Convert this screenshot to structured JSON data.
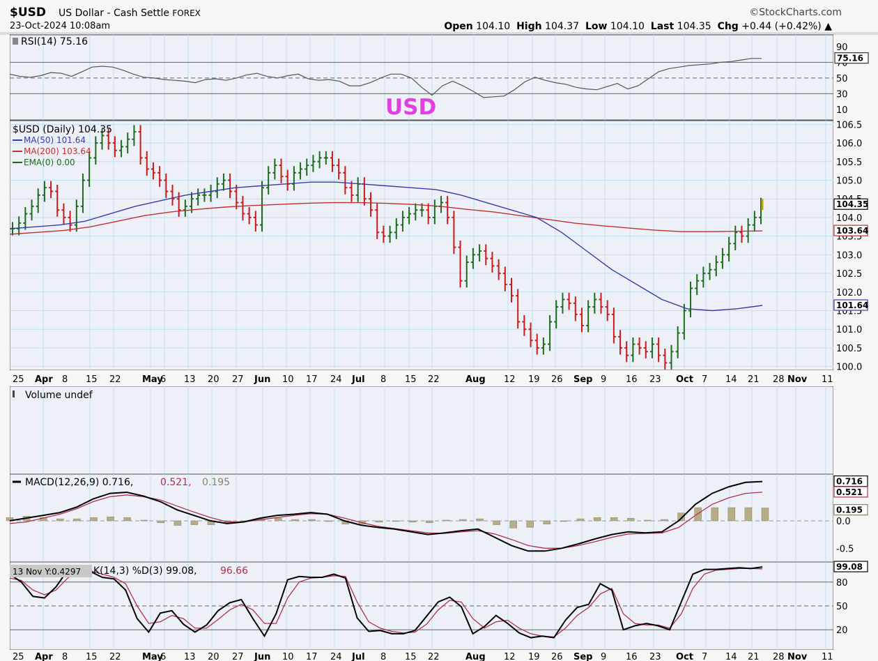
{
  "header": {
    "symbol": "$USD",
    "description": "US Dollar - Cash Settle",
    "market": "FOREX",
    "datetime": "23-Oct-2024 10:08am",
    "brand": "©StockCharts.com",
    "open_label": "Open",
    "open": "104.10",
    "high_label": "High",
    "high": "104.37",
    "low_label": "Low",
    "low": "104.10",
    "last_label": "Last",
    "last": "104.35",
    "chg_label": "Chg",
    "chg": "+0.44 (+0.42%)",
    "chg_arrow": "▲"
  },
  "annotation": "USD",
  "colors": {
    "up": "#1e6b1e",
    "down": "#cc1a1a",
    "ma50": "#3a3aa8",
    "ma200": "#c03030",
    "macd_hist": "#b5ad88",
    "bg": "#eef0f8",
    "grid": "#bfe0f2",
    "annotation": "#e040e0"
  },
  "chart_data": [
    {
      "type": "line",
      "panel": "RSI",
      "legend": "RSI(14) 75.16",
      "value_tag": "75.16",
      "ylim": [
        0,
        100
      ],
      "yticks": [
        "90",
        "70",
        "50",
        "30",
        "10"
      ],
      "levels": [
        70,
        50,
        30
      ],
      "series": [
        {
          "name": "RSI(14)",
          "values": [
            55,
            52,
            51,
            53,
            57,
            56,
            52,
            58,
            64,
            65,
            64,
            60,
            55,
            51,
            50,
            48,
            47,
            46,
            44,
            48,
            49,
            47,
            50,
            54,
            56,
            52,
            50,
            53,
            55,
            49,
            47,
            48,
            46,
            40,
            40,
            44,
            50,
            55,
            55,
            50,
            38,
            28,
            40,
            46,
            40,
            33,
            25,
            26,
            27,
            35,
            45,
            51,
            47,
            44,
            42,
            38,
            36,
            35,
            39,
            43,
            36,
            40,
            49,
            58,
            62,
            64,
            66,
            67,
            68,
            70,
            71,
            73,
            75,
            75
          ]
        }
      ],
      "x_labels": [
        "25",
        "Apr",
        "8",
        "15",
        "22",
        "May",
        "6",
        "13",
        "20",
        "27",
        "Jun",
        "10",
        "17",
        "24",
        "Jul",
        "8",
        "15",
        "22",
        "Aug",
        "12",
        "19",
        "26",
        "Sep",
        "9",
        "16",
        "23",
        "Oct",
        "7",
        "14",
        "21",
        "28",
        "Nov",
        "11"
      ]
    },
    {
      "type": "bar",
      "panel": "price",
      "legend": "$USD (Daily) 104.35",
      "series": [
        {
          "name": "MA(50)",
          "legend": "MA(50) 101.64",
          "tag": "101.64",
          "values": [
            103.7,
            103.75,
            103.8,
            103.9,
            104.1,
            104.3,
            104.45,
            104.6,
            104.7,
            104.8,
            104.85,
            104.9,
            104.95,
            104.95,
            104.9,
            104.85,
            104.8,
            104.75,
            104.6,
            104.4,
            104.2,
            104.0,
            103.6,
            103.1,
            102.6,
            102.2,
            101.8,
            101.55,
            101.5,
            101.55,
            101.64
          ]
        },
        {
          "name": "MA(200)",
          "legend": "MA(200) 103.64",
          "tag": "103.64",
          "values": [
            103.55,
            103.6,
            103.65,
            103.75,
            103.9,
            104.05,
            104.15,
            104.22,
            104.28,
            104.32,
            104.35,
            104.38,
            104.4,
            104.4,
            104.38,
            104.35,
            104.3,
            104.22,
            104.15,
            104.05,
            103.95,
            103.85,
            103.78,
            103.72,
            103.66,
            103.62,
            103.62,
            103.63,
            103.64
          ]
        },
        {
          "name": "EMA(0)",
          "legend": "EMA(0) 0.00"
        }
      ],
      "closes": [
        103.7,
        103.85,
        104.1,
        104.3,
        104.6,
        104.8,
        104.7,
        104.2,
        104.0,
        103.8,
        104.3,
        105.0,
        105.6,
        106.0,
        106.2,
        106.0,
        105.8,
        105.9,
        106.1,
        106.3,
        105.6,
        105.3,
        105.2,
        105.0,
        104.7,
        104.5,
        104.2,
        104.3,
        104.5,
        104.6,
        104.6,
        104.7,
        104.9,
        105.0,
        104.7,
        104.4,
        104.1,
        104.0,
        103.8,
        104.8,
        105.2,
        105.4,
        105.1,
        104.9,
        105.2,
        105.3,
        105.4,
        105.5,
        105.6,
        105.6,
        105.4,
        105.2,
        104.8,
        104.6,
        104.9,
        104.5,
        104.2,
        103.6,
        103.5,
        103.6,
        103.8,
        104.0,
        104.1,
        104.2,
        104.2,
        104.0,
        104.3,
        104.4,
        104.0,
        103.2,
        102.3,
        102.8,
        103.0,
        103.1,
        102.9,
        102.7,
        102.5,
        102.2,
        101.9,
        101.2,
        101.0,
        100.7,
        100.5,
        100.6,
        101.2,
        101.6,
        101.8,
        101.7,
        101.4,
        101.1,
        101.6,
        101.8,
        101.6,
        101.4,
        100.8,
        100.5,
        100.3,
        100.6,
        100.5,
        100.4,
        100.6,
        100.3,
        100.1,
        100.4,
        100.9,
        101.5,
        102.1,
        102.3,
        102.5,
        102.6,
        102.8,
        103.0,
        103.3,
        103.6,
        103.5,
        103.8,
        104.0,
        104.35
      ],
      "yticks": [
        "106.5",
        "106.0",
        "105.5",
        "105.0",
        "104.5",
        "104.0",
        "103.5",
        "103.0",
        "102.5",
        "102.0",
        "101.5",
        "101.0",
        "100.5",
        "100.0"
      ],
      "ylim": [
        99.9,
        106.6
      ],
      "last_tag": "104.35"
    },
    {
      "type": "bar",
      "panel": "volume",
      "legend": "Volume undef",
      "values": []
    },
    {
      "type": "line",
      "panel": "MACD",
      "legend": "MACD(12,26,9) 0.716, 0.521, 0.195",
      "legend_macd": "MACD(12,26,9) 0.716,",
      "legend_signal": "0.521,",
      "legend_hist": "0.195",
      "tags": [
        "0.716",
        "0.521",
        "0.195"
      ],
      "yticks": [
        "0.0",
        "-0.5"
      ],
      "ylim": [
        -0.75,
        0.85
      ],
      "series": [
        {
          "name": "MACD",
          "values": [
            0.0,
            0.05,
            0.1,
            0.15,
            0.25,
            0.4,
            0.5,
            0.52,
            0.45,
            0.35,
            0.2,
            0.1,
            0.0,
            -0.05,
            -0.02,
            0.05,
            0.1,
            0.12,
            0.15,
            0.12,
            0.0,
            -0.08,
            -0.12,
            -0.15,
            -0.2,
            -0.25,
            -0.22,
            -0.18,
            -0.15,
            -0.3,
            -0.45,
            -0.55,
            -0.55,
            -0.5,
            -0.42,
            -0.33,
            -0.25,
            -0.2,
            -0.22,
            -0.2,
            0.0,
            0.3,
            0.5,
            0.62,
            0.7,
            0.716
          ]
        },
        {
          "name": "Signal",
          "values": [
            -0.05,
            -0.02,
            0.05,
            0.12,
            0.22,
            0.35,
            0.44,
            0.47,
            0.44,
            0.38,
            0.27,
            0.16,
            0.06,
            -0.02,
            -0.02,
            0.02,
            0.06,
            0.1,
            0.13,
            0.12,
            0.05,
            -0.03,
            -0.1,
            -0.14,
            -0.18,
            -0.22,
            -0.23,
            -0.2,
            -0.18,
            -0.24,
            -0.34,
            -0.45,
            -0.5,
            -0.5,
            -0.45,
            -0.38,
            -0.3,
            -0.24,
            -0.23,
            -0.22,
            -0.12,
            0.1,
            0.3,
            0.42,
            0.5,
            0.521
          ]
        },
        {
          "name": "Histogram",
          "values": [
            0.05,
            0.07,
            0.05,
            0.03,
            0.03,
            0.05,
            0.06,
            0.05,
            0.01,
            -0.03,
            -0.07,
            -0.06,
            -0.06,
            -0.03,
            0.0,
            0.03,
            0.04,
            0.02,
            0.02,
            0.0,
            -0.05,
            -0.05,
            -0.02,
            -0.01,
            -0.02,
            -0.03,
            0.01,
            0.02,
            0.03,
            -0.06,
            -0.11,
            -0.1,
            -0.05,
            0.0,
            0.03,
            0.05,
            0.05,
            0.04,
            0.01,
            0.02,
            0.12,
            0.2,
            0.2,
            0.2,
            0.2,
            0.195
          ]
        }
      ]
    },
    {
      "type": "line",
      "panel": "Stochastic",
      "legend": "%K(14,3) %D(3) 99.08, 96.66",
      "legend_k": "K(14,3) %D(3) 99.08,",
      "legend_d": "96.66",
      "tag": "99.08",
      "tooltip": "13 Nov Y:0.4297",
      "yticks": [
        "80",
        "50",
        "20"
      ],
      "levels": [
        80,
        50,
        20
      ],
      "ylim": [
        0,
        100
      ],
      "series": [
        {
          "name": "%K",
          "values": [
            90,
            80,
            62,
            60,
            74,
            95,
            98,
            93,
            86,
            84,
            70,
            34,
            17,
            41,
            44,
            27,
            17,
            26,
            44,
            54,
            58,
            34,
            12,
            40,
            83,
            87,
            86,
            86,
            90,
            85,
            35,
            18,
            19,
            15,
            15,
            19,
            37,
            55,
            61,
            49,
            15,
            24,
            38,
            28,
            16,
            10,
            12,
            10,
            32,
            48,
            52,
            78,
            70,
            20,
            25,
            28,
            25,
            20,
            55,
            90,
            96,
            96,
            97,
            98,
            97,
            99
          ]
        },
        {
          "name": "%D",
          "values": [
            85,
            82,
            70,
            64,
            70,
            85,
            94,
            94,
            90,
            86,
            78,
            50,
            28,
            30,
            38,
            34,
            22,
            22,
            33,
            45,
            52,
            45,
            28,
            28,
            60,
            80,
            85,
            86,
            88,
            87,
            55,
            30,
            22,
            18,
            16,
            17,
            27,
            45,
            57,
            55,
            34,
            22,
            30,
            32,
            22,
            15,
            12,
            11,
            22,
            38,
            48,
            65,
            72,
            40,
            28,
            26,
            26,
            22,
            40,
            72,
            90,
            95,
            96,
            97,
            97,
            96.66
          ]
        }
      ]
    }
  ]
}
